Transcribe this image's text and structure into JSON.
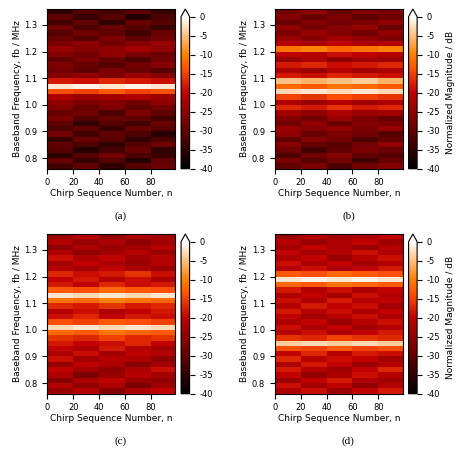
{
  "chart_data": [
    {
      "type": "heatmap",
      "caption": "(a)",
      "xlabel": "Chirp Sequence Number, n",
      "ylabel": "Baseband Frequency, fb / MHz",
      "xlim": [
        0,
        99
      ],
      "ylim": [
        0.76,
        1.36
      ],
      "xticks": [
        0,
        20,
        40,
        60,
        80
      ],
      "yticks": [
        0.8,
        0.9,
        1.0,
        1.1,
        1.2,
        1.3
      ],
      "x_edges": [
        0,
        20,
        40,
        60,
        80,
        99
      ],
      "y_edges": [
        0.76,
        0.78,
        0.8,
        0.82,
        0.84,
        0.86,
        0.88,
        0.9,
        0.92,
        0.94,
        0.96,
        0.98,
        1.0,
        1.02,
        1.04,
        1.06,
        1.08,
        1.1,
        1.12,
        1.14,
        1.16,
        1.18,
        1.2,
        1.22,
        1.24,
        1.26,
        1.28,
        1.3,
        1.32,
        1.34,
        1.36
      ],
      "colorbar_range": [
        -40,
        0
      ],
      "colorbar_ticks": [
        0,
        -5,
        -10,
        -15,
        -20,
        -25,
        -30,
        -35,
        -40
      ],
      "cells": [
        [
          -33,
          -30,
          -35,
          -31,
          -29
        ],
        [
          -29,
          -34,
          -31,
          -36,
          -30
        ],
        [
          -35,
          -31,
          -28,
          -32,
          -34
        ],
        [
          -31,
          -36,
          -33,
          -29,
          -35
        ],
        [
          -30,
          -32,
          -35,
          -31,
          -28
        ],
        [
          -34,
          -29,
          -31,
          -35,
          -32
        ],
        [
          -28,
          -33,
          -30,
          -32,
          -36
        ],
        [
          -32,
          -30,
          -34,
          -29,
          -31
        ],
        [
          -30,
          -35,
          -31,
          -33,
          -29
        ],
        [
          -27,
          -31,
          -29,
          -30,
          -33
        ],
        [
          -29,
          -28,
          -32,
          -27,
          -30
        ],
        [
          -26,
          -29,
          -27,
          -30,
          -28
        ],
        [
          -25,
          -27,
          -26,
          -28,
          -25
        ],
        [
          -22,
          -24,
          -23,
          -22,
          -24
        ],
        [
          -14,
          -15,
          -13,
          -15,
          -14
        ],
        [
          -2,
          -1,
          -2,
          -1,
          -2
        ],
        [
          -18,
          -19,
          -17,
          -18,
          -19
        ],
        [
          -26,
          -25,
          -27,
          -24,
          -26
        ],
        [
          -28,
          -30,
          -27,
          -29,
          -31
        ],
        [
          -27,
          -29,
          -31,
          -28,
          -26
        ],
        [
          -30,
          -27,
          -29,
          -32,
          -28
        ],
        [
          -26,
          -28,
          -25,
          -27,
          -29
        ],
        [
          -24,
          -26,
          -25,
          -23,
          -25
        ],
        [
          -27,
          -25,
          -28,
          -26,
          -24
        ],
        [
          -29,
          -31,
          -27,
          -30,
          -28
        ],
        [
          -31,
          -28,
          -30,
          -33,
          -29
        ],
        [
          -28,
          -32,
          -29,
          -31,
          -34
        ],
        [
          -33,
          -30,
          -35,
          -29,
          -31
        ],
        [
          -30,
          -34,
          -31,
          -36,
          -32
        ],
        [
          -35,
          -31,
          -33,
          -30,
          -34
        ]
      ]
    },
    {
      "type": "heatmap",
      "caption": "(b)",
      "xlabel": "Chirp Sequence Number, n",
      "ylabel": "Baseband Frequency, fb / MHz",
      "colorbar_label": "Normalized Magnitude / dB",
      "xlim": [
        0,
        99
      ],
      "ylim": [
        0.76,
        1.36
      ],
      "xticks": [
        0,
        20,
        40,
        60,
        80
      ],
      "yticks": [
        0.8,
        0.9,
        1.0,
        1.1,
        1.2,
        1.3
      ],
      "x_edges": [
        0,
        20,
        40,
        60,
        80,
        99
      ],
      "y_edges": [
        0.76,
        0.78,
        0.8,
        0.82,
        0.84,
        0.86,
        0.88,
        0.9,
        0.92,
        0.94,
        0.96,
        0.98,
        1.0,
        1.02,
        1.04,
        1.06,
        1.08,
        1.1,
        1.12,
        1.14,
        1.16,
        1.18,
        1.2,
        1.22,
        1.24,
        1.26,
        1.28,
        1.3,
        1.32,
        1.34,
        1.36
      ],
      "colorbar_range": [
        -40,
        0
      ],
      "colorbar_ticks": [
        0,
        -5,
        -10,
        -15,
        -20,
        -25,
        -30,
        -35,
        -40
      ],
      "cells": [
        [
          -30,
          -27,
          -32,
          -28,
          -26
        ],
        [
          -27,
          -31,
          -28,
          -33,
          -29
        ],
        [
          -32,
          -28,
          -26,
          -30,
          -31
        ],
        [
          -28,
          -33,
          -30,
          -27,
          -29
        ],
        [
          -26,
          -29,
          -31,
          -28,
          -25
        ],
        [
          -30,
          -26,
          -28,
          -32,
          -29
        ],
        [
          -25,
          -29,
          -27,
          -28,
          -31
        ],
        [
          -24,
          -26,
          -25,
          -27,
          -24
        ],
        [
          -28,
          -25,
          -29,
          -26,
          -27
        ],
        [
          -26,
          -28,
          -24,
          -27,
          -29
        ],
        [
          -23,
          -25,
          -22,
          -24,
          -23
        ],
        [
          -17,
          -18,
          -16,
          -18,
          -17
        ],
        [
          -22,
          -24,
          -21,
          -23,
          -22
        ],
        [
          -15,
          -16,
          -14,
          -15,
          -16
        ],
        [
          -3,
          -2,
          -3,
          -2,
          -3
        ],
        [
          -12,
          -13,
          -11,
          -12,
          -13
        ],
        [
          -5,
          -6,
          -5,
          -4,
          -6
        ],
        [
          -18,
          -19,
          -17,
          -18,
          -19
        ],
        [
          -22,
          -24,
          -21,
          -23,
          -22
        ],
        [
          -18,
          -17,
          -19,
          -18,
          -17
        ],
        [
          -24,
          -22,
          -25,
          -23,
          -24
        ],
        [
          -20,
          -21,
          -19,
          -20,
          -21
        ],
        [
          -11,
          -10,
          -12,
          -11,
          -10
        ],
        [
          -21,
          -22,
          -20,
          -22,
          -21
        ],
        [
          -24,
          -26,
          -23,
          -25,
          -27
        ],
        [
          -27,
          -24,
          -26,
          -28,
          -25
        ],
        [
          -25,
          -28,
          -26,
          -24,
          -29
        ],
        [
          -29,
          -26,
          -28,
          -27,
          -25
        ],
        [
          -26,
          -29,
          -27,
          -30,
          -28
        ],
        [
          -28,
          -25,
          -29,
          -26,
          -27
        ]
      ]
    },
    {
      "type": "heatmap",
      "caption": "(c)",
      "xlabel": "Chirp Sequence Number, n",
      "ylabel": "Baseband Frequency, fb / MHz",
      "xlim": [
        0,
        99
      ],
      "ylim": [
        0.76,
        1.36
      ],
      "xticks": [
        0,
        20,
        40,
        60,
        80
      ],
      "yticks": [
        0.8,
        0.9,
        1.0,
        1.1,
        1.2,
        1.3
      ],
      "x_edges": [
        0,
        20,
        40,
        60,
        80,
        99
      ],
      "y_edges": [
        0.76,
        0.78,
        0.8,
        0.82,
        0.84,
        0.86,
        0.88,
        0.9,
        0.92,
        0.94,
        0.96,
        0.98,
        1.0,
        1.02,
        1.04,
        1.06,
        1.08,
        1.1,
        1.12,
        1.14,
        1.16,
        1.18,
        1.2,
        1.22,
        1.24,
        1.26,
        1.28,
        1.3,
        1.32,
        1.34,
        1.36
      ],
      "colorbar_range": [
        -40,
        0
      ],
      "colorbar_ticks": [
        0,
        -5,
        -10,
        -15,
        -20,
        -25,
        -30,
        -35,
        -40
      ],
      "cells": [
        [
          -24,
          -21,
          -26,
          -22,
          -20
        ],
        [
          -21,
          -25,
          -22,
          -27,
          -23
        ],
        [
          -26,
          -22,
          -20,
          -24,
          -25
        ],
        [
          -22,
          -27,
          -24,
          -21,
          -23
        ],
        [
          -20,
          -23,
          -25,
          -22,
          -19
        ],
        [
          -24,
          -20,
          -22,
          -26,
          -23
        ],
        [
          -19,
          -23,
          -21,
          -22,
          -25
        ],
        [
          -22,
          -19,
          -23,
          -20,
          -21
        ],
        [
          -20,
          -22,
          -18,
          -21,
          -23
        ],
        [
          -18,
          -20,
          -19,
          -17,
          -20
        ],
        [
          -16,
          -17,
          -15,
          -17,
          -16
        ],
        [
          -12,
          -13,
          -11,
          -12,
          -13
        ],
        [
          -3,
          -2,
          -3,
          -2,
          -3
        ],
        [
          -14,
          -15,
          -13,
          -14,
          -15
        ],
        [
          -19,
          -17,
          -20,
          -18,
          -19
        ],
        [
          -21,
          -19,
          -22,
          -20,
          -18
        ],
        [
          -17,
          -18,
          -16,
          -18,
          -17
        ],
        [
          -11,
          -12,
          -10,
          -11,
          -12
        ],
        [
          -2,
          -3,
          -2,
          -3,
          -2
        ],
        [
          -13,
          -14,
          -12,
          -13,
          -14
        ],
        [
          -18,
          -20,
          -17,
          -19,
          -18
        ],
        [
          -20,
          -18,
          -21,
          -19,
          -22
        ],
        [
          -17,
          -19,
          -18,
          -16,
          -19
        ],
        [
          -21,
          -23,
          -20,
          -22,
          -24
        ],
        [
          -23,
          -20,
          -22,
          -24,
          -21
        ],
        [
          -19,
          -22,
          -20,
          -23,
          -21
        ],
        [
          -22,
          -25,
          -23,
          -21,
          -24
        ],
        [
          -25,
          -22,
          -24,
          -23,
          -21
        ],
        [
          -21,
          -24,
          -22,
          -25,
          -23
        ],
        [
          -24,
          -21,
          -25,
          -22,
          -23
        ]
      ]
    },
    {
      "type": "heatmap",
      "caption": "(d)",
      "xlabel": "Chirp Sequence Number, n",
      "ylabel": "Baseband Frequency, fb / MHz",
      "colorbar_label": "Normalized Magnitude / dB",
      "xlim": [
        0,
        99
      ],
      "ylim": [
        0.76,
        1.36
      ],
      "xticks": [
        0,
        20,
        40,
        60,
        80
      ],
      "yticks": [
        0.8,
        0.9,
        1.0,
        1.1,
        1.2,
        1.3
      ],
      "x_edges": [
        0,
        20,
        40,
        60,
        80,
        99
      ],
      "y_edges": [
        0.76,
        0.78,
        0.8,
        0.82,
        0.84,
        0.86,
        0.88,
        0.9,
        0.92,
        0.94,
        0.96,
        0.98,
        1.0,
        1.02,
        1.04,
        1.06,
        1.08,
        1.1,
        1.12,
        1.14,
        1.16,
        1.18,
        1.2,
        1.22,
        1.24,
        1.26,
        1.28,
        1.3,
        1.32,
        1.34,
        1.36
      ],
      "colorbar_range": [
        -40,
        0
      ],
      "colorbar_ticks": [
        0,
        -5,
        -10,
        -15,
        -20,
        -25,
        -30,
        -35,
        -40
      ],
      "cells": [
        [
          -22,
          -19,
          -24,
          -20,
          -18
        ],
        [
          -19,
          -23,
          -20,
          -25,
          -21
        ],
        [
          -24,
          -20,
          -18,
          -22,
          -23
        ],
        [
          -20,
          -25,
          -22,
          -19,
          -21
        ],
        [
          -18,
          -21,
          -23,
          -20,
          -17
        ],
        [
          -22,
          -18,
          -20,
          -24,
          -21
        ],
        [
          -17,
          -21,
          -19,
          -20,
          -23
        ],
        [
          -20,
          -17,
          -21,
          -18,
          -19
        ],
        [
          -14,
          -15,
          -13,
          -15,
          -14
        ],
        [
          -4,
          -3,
          -4,
          -3,
          -4
        ],
        [
          -16,
          -17,
          -15,
          -16,
          -17
        ],
        [
          -21,
          -19,
          -22,
          -20,
          -18
        ],
        [
          -19,
          -22,
          -20,
          -23,
          -21
        ],
        [
          -22,
          -20,
          -24,
          -21,
          -19
        ],
        [
          -20,
          -23,
          -21,
          -19,
          -22
        ],
        [
          -18,
          -21,
          -19,
          -22,
          -20
        ],
        [
          -21,
          -18,
          -20,
          -19,
          -23
        ],
        [
          -19,
          -22,
          -18,
          -21,
          -20
        ],
        [
          -22,
          -20,
          -23,
          -19,
          -21
        ],
        [
          -18,
          -21,
          -19,
          -22,
          -20
        ],
        [
          -12,
          -13,
          -11,
          -12,
          -13
        ],
        [
          -2,
          -1,
          -2,
          -1,
          -2
        ],
        [
          -13,
          -14,
          -12,
          -13,
          -14
        ],
        [
          -21,
          -19,
          -22,
          -20,
          -18
        ],
        [
          -19,
          -22,
          -20,
          -23,
          -21
        ],
        [
          -22,
          -20,
          -24,
          -21,
          -19
        ],
        [
          -20,
          -23,
          -21,
          -19,
          -22
        ],
        [
          -23,
          -20,
          -22,
          -24,
          -21
        ],
        [
          -21,
          -24,
          -22,
          -20,
          -23
        ],
        [
          -24,
          -21,
          -23,
          -22,
          -20
        ]
      ]
    }
  ]
}
